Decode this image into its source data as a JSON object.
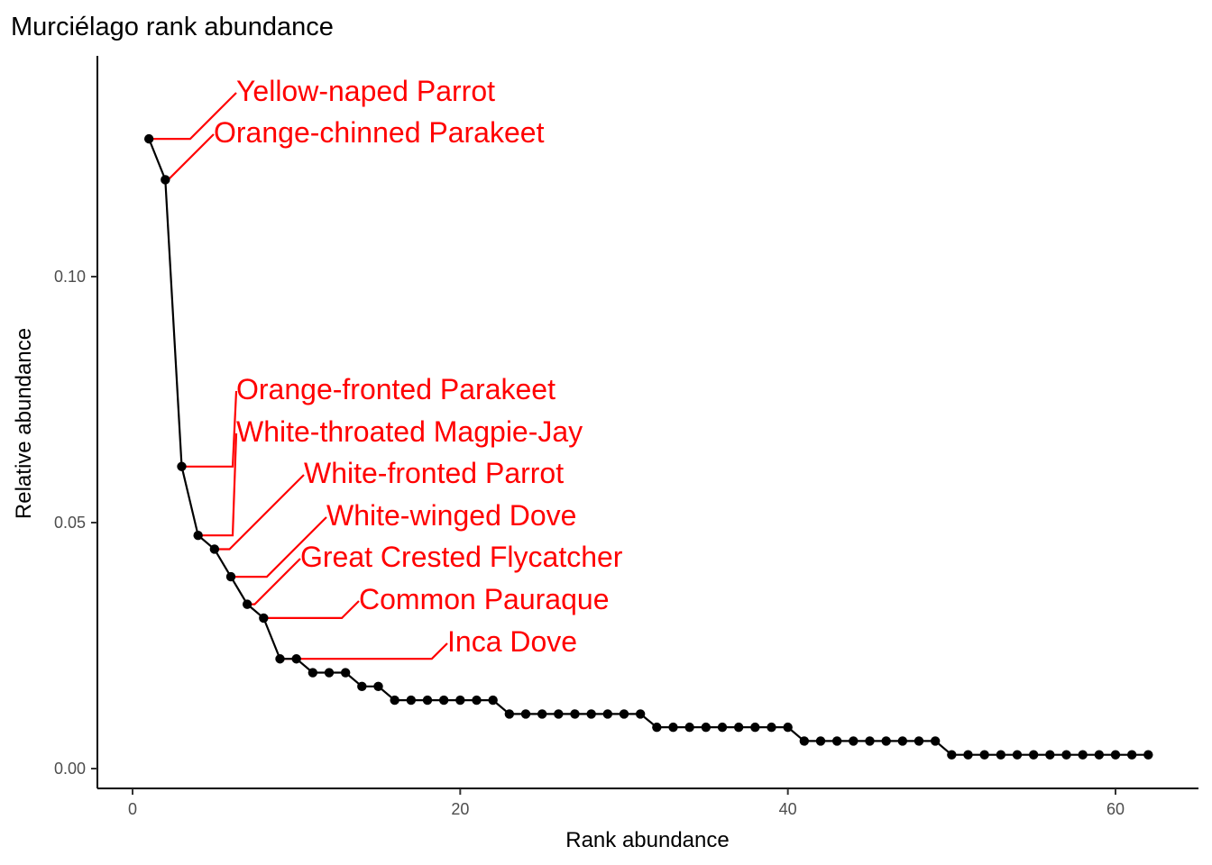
{
  "chart_data": {
    "type": "line",
    "title": "Murciélago rank abundance",
    "xlabel": "Rank abundance",
    "ylabel": "Relative abundance",
    "xlim": [
      0,
      64
    ],
    "ylim": [
      0,
      0.1375
    ],
    "xticks": [
      0,
      20,
      40,
      60
    ],
    "xtick_labels": [
      "0",
      "20",
      "40",
      "60"
    ],
    "yticks": [
      0,
      0.05,
      0.1
    ],
    "ytick_labels": [
      "0.00",
      "0.05",
      "0.10"
    ],
    "grid": false,
    "legend": "none",
    "colors": {
      "line": "#000000",
      "point": "#000000",
      "annotation": "#ff0000"
    },
    "series": [
      {
        "x": [
          1,
          2,
          3,
          4,
          5,
          6,
          7,
          8,
          9,
          10,
          11,
          12,
          13,
          14,
          15,
          16,
          17,
          18,
          19,
          20,
          21,
          22,
          23,
          24,
          25,
          26,
          27,
          28,
          29,
          30,
          31,
          32,
          33,
          34,
          35,
          36,
          37,
          38,
          39,
          40,
          41,
          42,
          43,
          44,
          45,
          46,
          47,
          48,
          49,
          50,
          51,
          52,
          53,
          54,
          55,
          56,
          57,
          58,
          59,
          60,
          61,
          62
        ],
        "values": [
          0.128,
          0.1197,
          0.0614,
          0.0474,
          0.0446,
          0.039,
          0.0334,
          0.0306,
          0.0223,
          0.0223,
          0.0195,
          0.0195,
          0.0195,
          0.0167,
          0.0167,
          0.0139,
          0.0139,
          0.0139,
          0.0139,
          0.0139,
          0.0139,
          0.0139,
          0.0111,
          0.0111,
          0.0111,
          0.0111,
          0.0111,
          0.0111,
          0.0111,
          0.0111,
          0.0111,
          0.0084,
          0.0084,
          0.0084,
          0.0084,
          0.0084,
          0.0084,
          0.0084,
          0.0084,
          0.0084,
          0.0056,
          0.0056,
          0.0056,
          0.0056,
          0.0056,
          0.0056,
          0.0056,
          0.0056,
          0.0056,
          0.0028,
          0.0028,
          0.0028,
          0.0028,
          0.0028,
          0.0028,
          0.0028,
          0.0028,
          0.0028,
          0.0028,
          0.0028,
          0.0028,
          0.0028
        ]
      }
    ],
    "annotations": [
      {
        "label": "Yellow-naped Parrot",
        "rank": 1
      },
      {
        "label": "Orange-chinned Parakeet",
        "rank": 2
      },
      {
        "label": "Orange-fronted Parakeet",
        "rank": 3
      },
      {
        "label": "White-throated Magpie-Jay",
        "rank": 4
      },
      {
        "label": "White-fronted Parrot",
        "rank": 5
      },
      {
        "label": "White-winged Dove",
        "rank": 6
      },
      {
        "label": "Great Crested Flycatcher",
        "rank": 7
      },
      {
        "label": "Common Pauraque",
        "rank": 8
      },
      {
        "label": "Inca Dove",
        "rank": 9
      }
    ]
  }
}
